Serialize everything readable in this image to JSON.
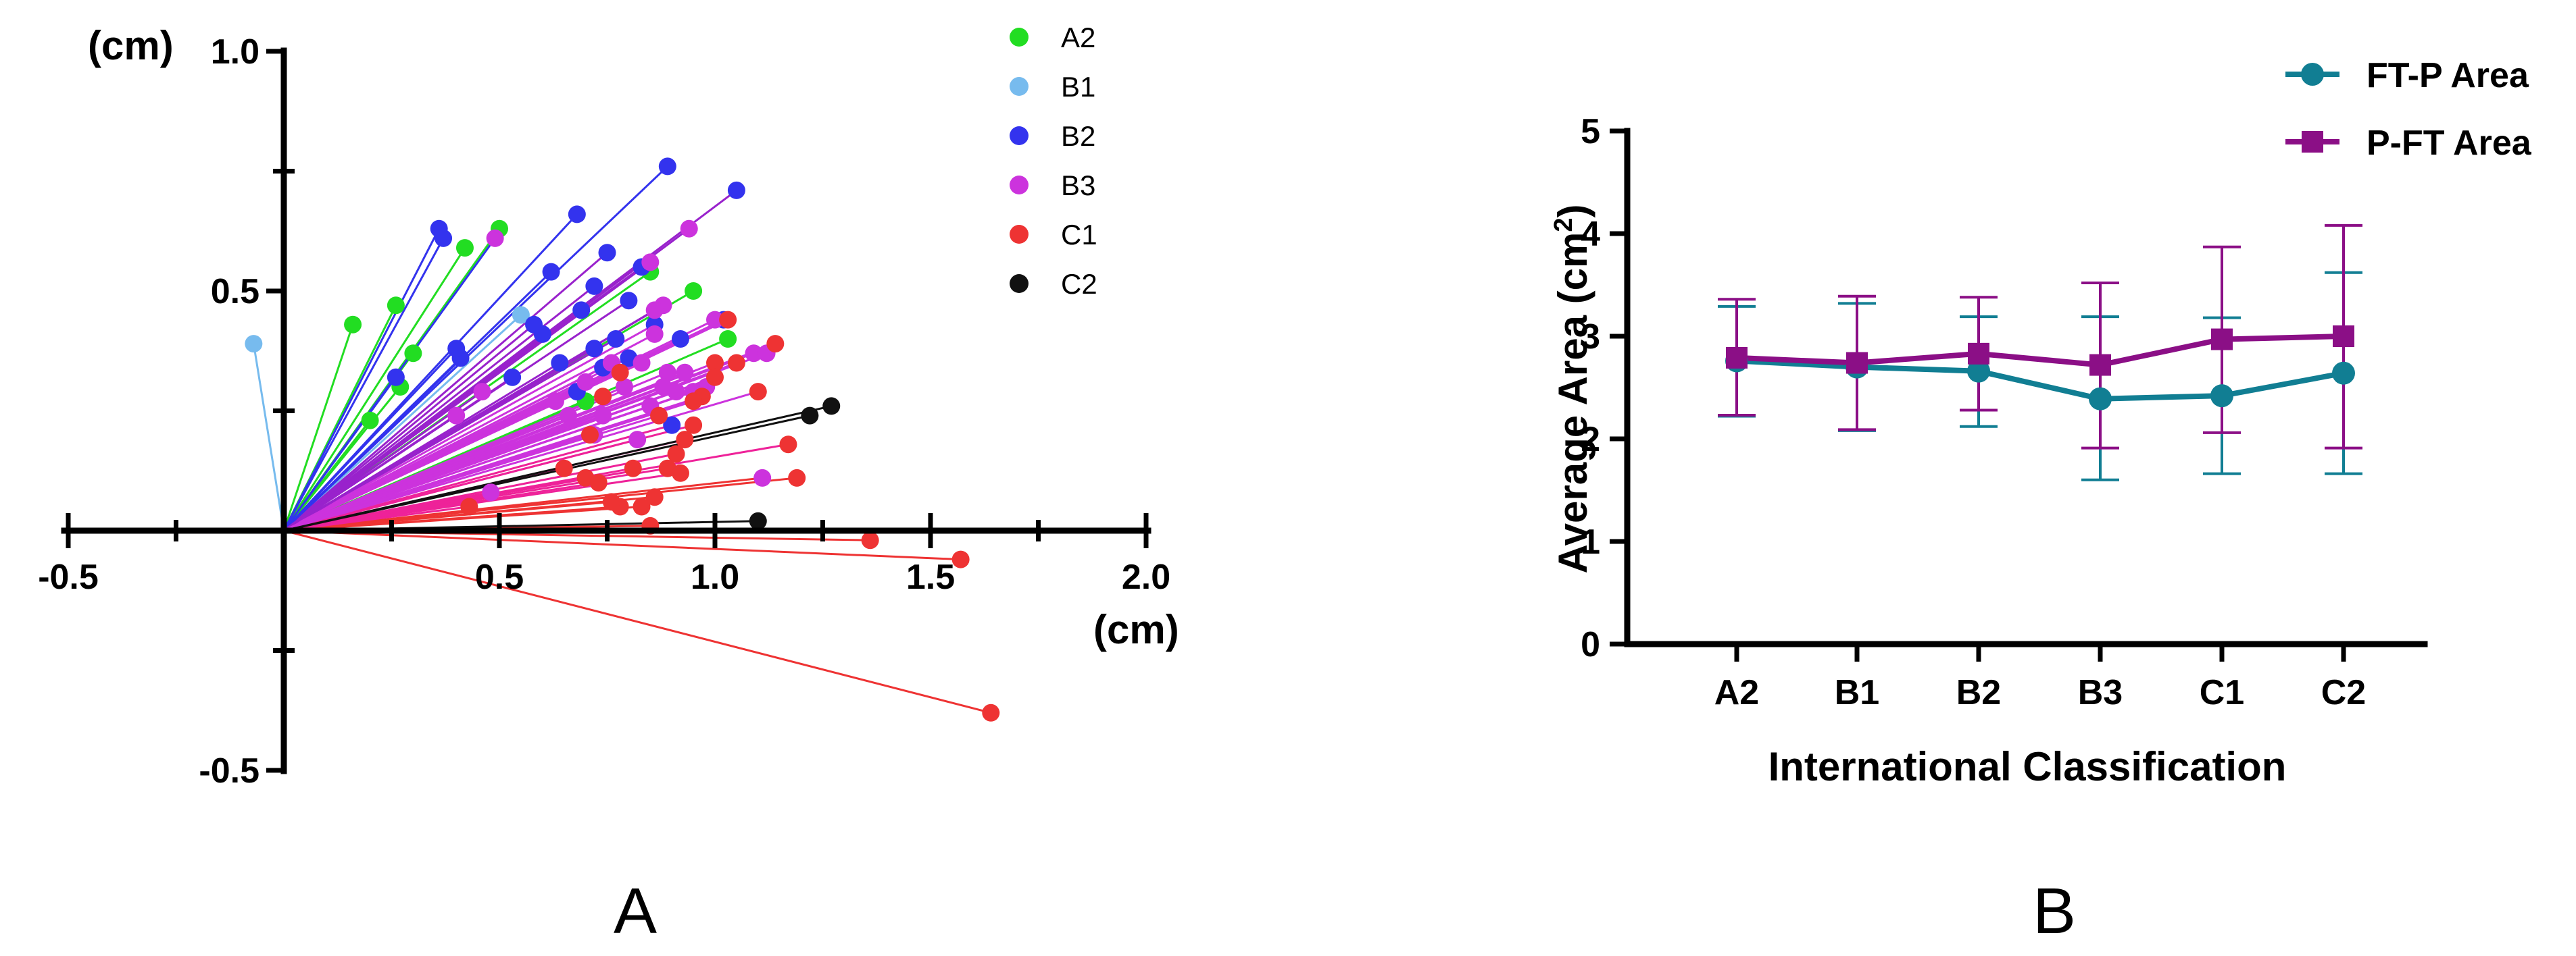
{
  "panels": {
    "a_label": "A",
    "b_label": "B"
  },
  "colors": {
    "A2": "#22dd22",
    "B1": "#77bbee",
    "B2": "#3333ee",
    "B3": "#cc33dd",
    "C1": "#ee3333",
    "C2": "#111111",
    "fan_mid": "#9922cc",
    "fan_low": "#ee2299",
    "ftp": "#117e93",
    "pft": "#8b0f86"
  },
  "chart_data": [
    {
      "type": "scatter",
      "panel": "A",
      "xlabel": "(cm)",
      "ylabel": "(cm)",
      "xlim": [
        -0.5,
        2.0
      ],
      "ylim": [
        -0.5,
        1.0
      ],
      "x_ticks": [
        -0.5,
        0.5,
        1.0,
        1.5,
        2.0
      ],
      "x_tick_labels": [
        "-0.5",
        "0.5",
        "1.0",
        "1.5",
        "2.0"
      ],
      "y_ticks": [
        -0.5,
        0.5,
        1.0
      ],
      "y_tick_labels": [
        "-0.5",
        "0.5",
        "1.0"
      ],
      "origin": [
        0,
        0
      ],
      "legend_position": "top-right",
      "series": [
        {
          "name": "A2",
          "points": [
            [
              0.16,
              0.43
            ],
            [
              0.26,
              0.47
            ],
            [
              0.42,
              0.59
            ],
            [
              0.5,
              0.63
            ],
            [
              0.3,
              0.37
            ],
            [
              0.27,
              0.3
            ],
            [
              0.2,
              0.23
            ],
            [
              0.7,
              0.27
            ],
            [
              1.03,
              0.4
            ],
            [
              0.95,
              0.5
            ],
            [
              0.85,
              0.54
            ]
          ]
        },
        {
          "name": "B1",
          "points": [
            [
              -0.07,
              0.39
            ],
            [
              0.55,
              0.45
            ]
          ]
        },
        {
          "name": "B2",
          "points": [
            [
              0.36,
              0.63
            ],
            [
              0.37,
              0.61
            ],
            [
              0.68,
              0.66
            ],
            [
              0.89,
              0.76
            ],
            [
              1.05,
              0.71
            ],
            [
              0.75,
              0.58
            ],
            [
              0.62,
              0.54
            ],
            [
              0.72,
              0.51
            ],
            [
              0.83,
              0.55
            ],
            [
              0.8,
              0.48
            ],
            [
              0.69,
              0.46
            ],
            [
              0.6,
              0.41
            ],
            [
              0.58,
              0.43
            ],
            [
              0.41,
              0.36
            ],
            [
              0.4,
              0.38
            ],
            [
              0.26,
              0.32
            ],
            [
              0.53,
              0.32
            ],
            [
              0.64,
              0.35
            ],
            [
              0.72,
              0.38
            ],
            [
              0.77,
              0.4
            ],
            [
              0.86,
              0.43
            ],
            [
              1.02,
              0.44
            ],
            [
              0.92,
              0.4
            ],
            [
              0.8,
              0.36
            ],
            [
              0.74,
              0.34
            ],
            [
              0.68,
              0.29
            ],
            [
              0.9,
              0.22
            ]
          ]
        },
        {
          "name": "B3",
          "points": [
            [
              0.49,
              0.61
            ],
            [
              0.94,
              0.63
            ],
            [
              0.85,
              0.56
            ],
            [
              0.88,
              0.47
            ],
            [
              0.86,
              0.46
            ],
            [
              1.09,
              0.37
            ],
            [
              1.12,
              0.37
            ],
            [
              1.0,
              0.44
            ],
            [
              0.86,
              0.41
            ],
            [
              0.76,
              0.35
            ],
            [
              0.83,
              0.35
            ],
            [
              0.93,
              0.33
            ],
            [
              0.98,
              0.3
            ],
            [
              0.79,
              0.3
            ],
            [
              0.63,
              0.27
            ],
            [
              0.46,
              0.29
            ],
            [
              0.7,
              0.31
            ],
            [
              0.74,
              0.24
            ],
            [
              0.85,
              0.26
            ],
            [
              0.91,
              0.29
            ],
            [
              0.72,
              0.2
            ],
            [
              0.82,
              0.19
            ],
            [
              1.11,
              0.11
            ],
            [
              0.48,
              0.08
            ],
            [
              0.4,
              0.24
            ],
            [
              0.89,
              0.33
            ],
            [
              0.95,
              0.29
            ],
            [
              0.66,
              0.24
            ],
            [
              0.88,
              0.3
            ]
          ]
        },
        {
          "name": "C1",
          "points": [
            [
              1.03,
              0.44
            ],
            [
              1.14,
              0.39
            ],
            [
              1.05,
              0.35
            ],
            [
              1.0,
              0.35
            ],
            [
              1.0,
              0.32
            ],
            [
              1.1,
              0.29
            ],
            [
              0.97,
              0.28
            ],
            [
              0.95,
              0.27
            ],
            [
              0.87,
              0.24
            ],
            [
              0.95,
              0.22
            ],
            [
              1.17,
              0.18
            ],
            [
              0.93,
              0.19
            ],
            [
              0.91,
              0.16
            ],
            [
              0.89,
              0.13
            ],
            [
              0.92,
              0.12
            ],
            [
              0.81,
              0.13
            ],
            [
              1.19,
              0.11
            ],
            [
              0.7,
              0.11
            ],
            [
              0.65,
              0.13
            ],
            [
              0.73,
              0.1
            ],
            [
              0.78,
              0.05
            ],
            [
              0.83,
              0.05
            ],
            [
              0.86,
              0.07
            ],
            [
              0.76,
              0.06
            ],
            [
              0.43,
              0.05
            ],
            [
              0.85,
              0.01
            ],
            [
              1.36,
              -0.02
            ],
            [
              1.57,
              -0.06
            ],
            [
              1.64,
              -0.38
            ],
            [
              0.71,
              0.2
            ],
            [
              0.74,
              0.28
            ],
            [
              0.78,
              0.33
            ]
          ]
        },
        {
          "name": "C2",
          "points": [
            [
              1.27,
              0.26
            ],
            [
              1.22,
              0.24
            ],
            [
              1.1,
              0.02
            ]
          ]
        }
      ]
    },
    {
      "type": "line",
      "panel": "B",
      "xlabel": "International Classification",
      "ylabel_main": "Average Area (cm",
      "ylabel_sup": "2",
      "ylabel_close": ")",
      "categories": [
        "A2",
        "B1",
        "B2",
        "B3",
        "C1",
        "C2"
      ],
      "ylim": [
        0,
        5
      ],
      "y_ticks": [
        0,
        1,
        2,
        3,
        4,
        5
      ],
      "y_tick_labels": [
        "0",
        "1",
        "2",
        "3",
        "4",
        "5"
      ],
      "legend_position": "top-right",
      "series": [
        {
          "name": "FT-P Area",
          "marker": "circle",
          "values": [
            2.76,
            2.7,
            2.66,
            2.39,
            2.42,
            2.64
          ],
          "err_low": [
            2.22,
            2.08,
            2.12,
            1.6,
            1.66,
            1.66
          ],
          "err_high": [
            3.29,
            3.32,
            3.19,
            3.19,
            3.18,
            3.62
          ]
        },
        {
          "name": "P-FT Area",
          "marker": "square",
          "values": [
            2.79,
            2.74,
            2.83,
            2.72,
            2.97,
            3.0
          ],
          "err_low": [
            2.23,
            2.09,
            2.28,
            1.91,
            2.06,
            1.91
          ],
          "err_high": [
            3.36,
            3.39,
            3.38,
            3.52,
            3.87,
            4.08
          ]
        }
      ]
    }
  ]
}
